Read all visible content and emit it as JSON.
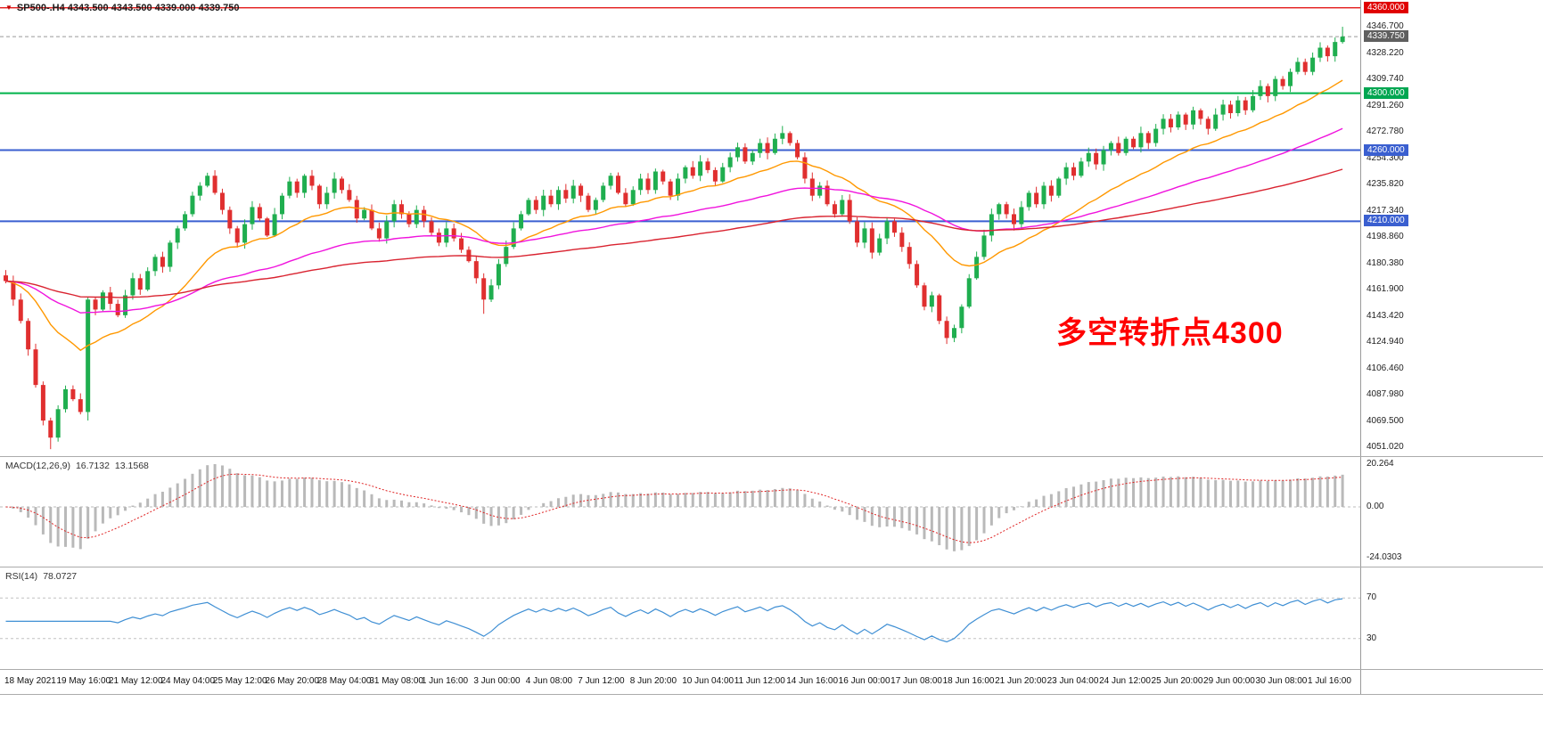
{
  "header": {
    "symbol_marker": "▼",
    "ohlc_text": "SP500-.H4  4343.500 4343.500 4339.000 4339.750"
  },
  "annotation": {
    "text": "多空转折点4300",
    "color": "#ff0000"
  },
  "colors": {
    "bull": "#1fae4f",
    "bear": "#e02f2f",
    "ma_fast": "#ff9800",
    "ma_mid": "#f013dd",
    "ma_slow": "#d92330",
    "macd_hist": "#b9b9b9",
    "macd_signal": "#e02525",
    "macd_zero": "#bbbbbb",
    "rsi_line": "#3f8fd4",
    "rsi_level": "#c0c0c0",
    "current_price_line": "#999999",
    "axis_text": "#222222"
  },
  "price_axis": {
    "ladder": [
      "4346.700",
      "4328.220",
      "4309.740",
      "4291.260",
      "4272.780",
      "4254.300",
      "4235.820",
      "4217.340",
      "4198.860",
      "4180.380",
      "4161.900",
      "4143.420",
      "4124.940",
      "4106.460",
      "4087.980",
      "4069.500",
      "4051.020"
    ],
    "badges": [
      {
        "value": "4360.000",
        "price": 4360.0,
        "color": "#e00000"
      },
      {
        "value": "4339.750",
        "price": 4339.75,
        "color": "#5f5f5f"
      },
      {
        "value": "4300.000",
        "price": 4300.0,
        "color": "#00a651"
      },
      {
        "value": "4260.000",
        "price": 4260.0,
        "color": "#3a5fd0"
      },
      {
        "value": "4210.000",
        "price": 4210.0,
        "color": "#3a5fd0"
      }
    ]
  },
  "hlines": [
    {
      "price": 4360.0,
      "color": "#e00000",
      "width": 1.2,
      "style": "solid"
    },
    {
      "price": 4300.0,
      "color": "#00b34a",
      "width": 2,
      "style": "solid"
    },
    {
      "price": 4260.0,
      "color": "#3a5fd0",
      "width": 2,
      "style": "solid"
    },
    {
      "price": 4210.0,
      "color": "#3a5fd0",
      "width": 2,
      "style": "solid"
    },
    {
      "price": 4339.75,
      "color": "#999999",
      "width": 1,
      "style": "dashed"
    }
  ],
  "chart_data": {
    "type": "candlestick",
    "symbol": "SP500-.H4",
    "timeframe": "H4",
    "ylim": [
      4045.0,
      4365.5
    ],
    "first_open": 4172,
    "closes": [
      4168,
      4155,
      4140,
      4120,
      4095,
      4070,
      4058,
      4078,
      4092,
      4085,
      4076,
      4155,
      4148,
      4160,
      4152,
      4144,
      4158,
      4170,
      4162,
      4175,
      4185,
      4178,
      4195,
      4205,
      4215,
      4228,
      4235,
      4242,
      4230,
      4218,
      4205,
      4195,
      4208,
      4220,
      4212,
      4200,
      4215,
      4228,
      4238,
      4230,
      4242,
      4235,
      4222,
      4230,
      4240,
      4232,
      4225,
      4212,
      4218,
      4205,
      4198,
      4210,
      4222,
      4215,
      4208,
      4218,
      4210,
      4202,
      4195,
      4205,
      4198,
      4190,
      4182,
      4170,
      4155,
      4165,
      4180,
      4192,
      4205,
      4215,
      4225,
      4218,
      4228,
      4222,
      4232,
      4226,
      4235,
      4228,
      4218,
      4225,
      4235,
      4242,
      4230,
      4222,
      4232,
      4240,
      4232,
      4245,
      4238,
      4228,
      4240,
      4248,
      4242,
      4252,
      4246,
      4238,
      4248,
      4255,
      4262,
      4252,
      4258,
      4265,
      4258,
      4268,
      4272,
      4265,
      4255,
      4240,
      4228,
      4235,
      4222,
      4215,
      4225,
      4210,
      4195,
      4205,
      4188,
      4198,
      4210,
      4202,
      4192,
      4180,
      4165,
      4150,
      4158,
      4140,
      4128,
      4135,
      4150,
      4170,
      4185,
      4200,
      4215,
      4222,
      4215,
      4208,
      4220,
      4230,
      4222,
      4235,
      4228,
      4240,
      4248,
      4242,
      4252,
      4258,
      4250,
      4260,
      4265,
      4258,
      4268,
      4262,
      4272,
      4265,
      4275,
      4282,
      4276,
      4285,
      4278,
      4288,
      4282,
      4275,
      4285,
      4292,
      4286,
      4295,
      4288,
      4298,
      4305,
      4298,
      4310,
      4305,
      4315,
      4322,
      4315,
      4325,
      4332,
      4326,
      4336,
      4339.75
    ],
    "wick_overrides": {
      "6": {
        "low": 4049.9
      },
      "11": {
        "low": 4070.0
      },
      "64": {
        "low": 4145.0
      },
      "104": {
        "high": 4277.0
      },
      "126": {
        "low": 4123.8
      },
      "179": {
        "high": 4346.7
      }
    },
    "moving_averages": [
      {
        "name": "fast",
        "period": 20,
        "color_key": "ma_fast"
      },
      {
        "name": "mid",
        "period": 55,
        "color_key": "ma_mid"
      },
      {
        "name": "slow",
        "period": 120,
        "color_key": "ma_slow"
      }
    ],
    "macd": {
      "label": "MACD(12,26,9)",
      "value_main": "16.7132",
      "value_signal": "13.1568",
      "fast": 12,
      "slow": 26,
      "signal": 9,
      "axis_labels": [
        "20.264",
        "0.00",
        "-24.0303"
      ],
      "axis_values": [
        20.264,
        0,
        -24.0303
      ]
    },
    "rsi": {
      "label": "RSI(14)",
      "value": "78.0727",
      "period": 14,
      "levels": [
        70,
        30
      ],
      "axis_labels": [
        "70",
        "30"
      ]
    },
    "time_axis": [
      "18 May 2021",
      "19 May 16:00",
      "21 May 12:00",
      "24 May 04:00",
      "25 May 12:00",
      "26 May 20:00",
      "28 May 04:00",
      "31 May 08:00",
      "1 Jun 16:00",
      "3 Jun 00:00",
      "4 Jun 08:00",
      "7 Jun 12:00",
      "8 Jun 20:00",
      "10 Jun 04:00",
      "11 Jun 12:00",
      "14 Jun 16:00",
      "16 Jun 00:00",
      "17 Jun 08:00",
      "18 Jun 16:00",
      "21 Jun 20:00",
      "23 Jun 04:00",
      "24 Jun 12:00",
      "25 Jun 20:00",
      "29 Jun 00:00",
      "30 Jun 08:00",
      "1 Jul 16:00"
    ]
  }
}
